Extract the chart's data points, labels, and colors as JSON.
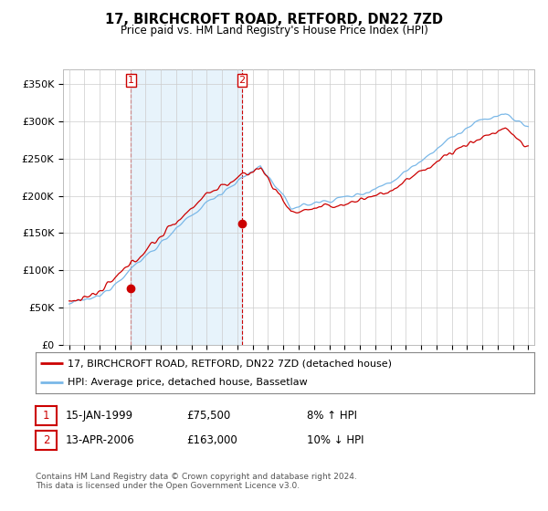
{
  "title": "17, BIRCHCROFT ROAD, RETFORD, DN22 7ZD",
  "subtitle": "Price paid vs. HM Land Registry's House Price Index (HPI)",
  "ylim": [
    0,
    370000
  ],
  "yticks": [
    0,
    50000,
    100000,
    150000,
    200000,
    250000,
    300000,
    350000
  ],
  "ytick_labels": [
    "£0",
    "£50K",
    "£100K",
    "£150K",
    "£200K",
    "£250K",
    "£300K",
    "£350K"
  ],
  "hpi_color": "#7ab8e8",
  "hpi_fill_color": "#d0e8f8",
  "price_color": "#cc0000",
  "marker_color": "#cc0000",
  "vline_color": "#cc0000",
  "grid_color": "#cccccc",
  "bg_color": "#ffffff",
  "purchase1_price": 75500,
  "purchase2_price": 163000,
  "legend_label_red": "17, BIRCHCROFT ROAD, RETFORD, DN22 7ZD (detached house)",
  "legend_label_blue": "HPI: Average price, detached house, Bassetlaw",
  "annotation1_date": "15-JAN-1999",
  "annotation1_price": "£75,500",
  "annotation1_hpi": "8% ↑ HPI",
  "annotation2_date": "13-APR-2006",
  "annotation2_price": "£163,000",
  "annotation2_hpi": "10% ↓ HPI",
  "footer": "Contains HM Land Registry data © Crown copyright and database right 2024.\nThis data is licensed under the Open Government Licence v3.0."
}
